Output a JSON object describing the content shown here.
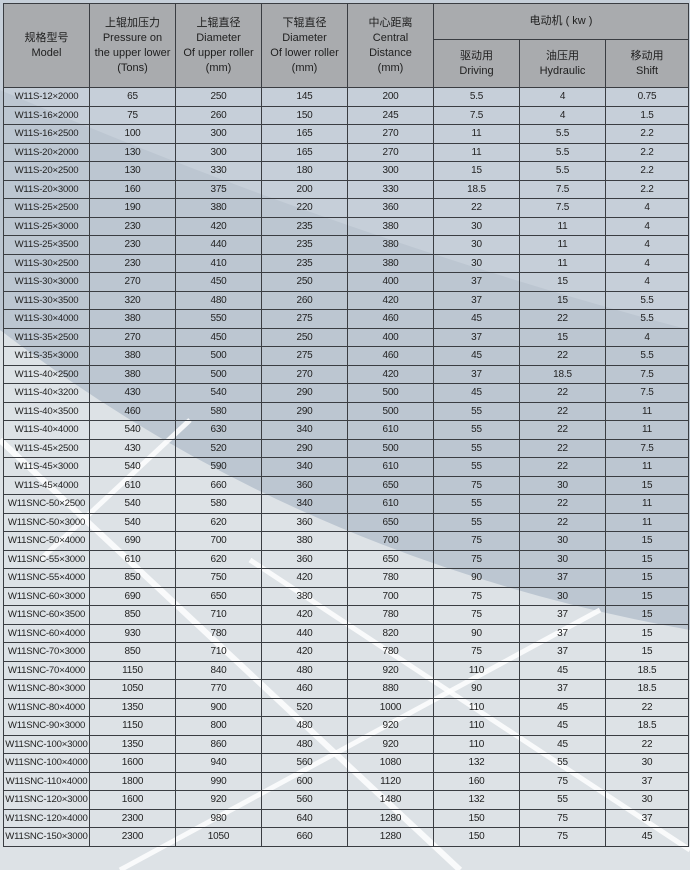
{
  "header": {
    "model": {
      "cn": "规格型号",
      "en": "Model"
    },
    "pressure": {
      "cn": "上辊加压力",
      "en1": "Pressure on",
      "en2": "the upper lower",
      "unit": "(Tons)"
    },
    "upper": {
      "cn": "上辊直径",
      "en1": "Diameter",
      "en2": "Of upper roller",
      "unit": "(mm)"
    },
    "lower": {
      "cn": "下辊直径",
      "en1": "Diameter",
      "en2": "Of lower roller",
      "unit": "(mm)"
    },
    "center": {
      "cn": "中心距离",
      "en1": "Central",
      "en2": "Distance",
      "unit": "(mm)"
    },
    "motor": "电动机 ( kw )",
    "driving": {
      "cn": "驱动用",
      "en": "Driving"
    },
    "hydraulic": {
      "cn": "油压用",
      "en": "Hydraulic"
    },
    "shift": {
      "cn": "移动用",
      "en": "Shift"
    }
  },
  "rows": [
    [
      "W11S-12×2000",
      "65",
      "250",
      "145",
      "200",
      "5.5",
      "4",
      "0.75"
    ],
    [
      "W11S-16×2000",
      "75",
      "260",
      "150",
      "245",
      "7.5",
      "4",
      "1.5"
    ],
    [
      "W11S-16×2500",
      "100",
      "300",
      "165",
      "270",
      "11",
      "5.5",
      "2.2"
    ],
    [
      "W11S-20×2000",
      "130",
      "300",
      "165",
      "270",
      "11",
      "5.5",
      "2.2"
    ],
    [
      "W11S-20×2500",
      "130",
      "330",
      "180",
      "300",
      "15",
      "5.5",
      "2.2"
    ],
    [
      "W11S-20×3000",
      "160",
      "375",
      "200",
      "330",
      "18.5",
      "7.5",
      "2.2"
    ],
    [
      "W11S-25×2500",
      "190",
      "380",
      "220",
      "360",
      "22",
      "7.5",
      "4"
    ],
    [
      "W11S-25×3000",
      "230",
      "420",
      "235",
      "380",
      "30",
      "11",
      "4"
    ],
    [
      "W11S-25×3500",
      "230",
      "440",
      "235",
      "380",
      "30",
      "11",
      "4"
    ],
    [
      "W11S-30×2500",
      "230",
      "410",
      "235",
      "380",
      "30",
      "11",
      "4"
    ],
    [
      "W11S-30×3000",
      "270",
      "450",
      "250",
      "400",
      "37",
      "15",
      "4"
    ],
    [
      "W11S-30×3500",
      "320",
      "480",
      "260",
      "420",
      "37",
      "15",
      "5.5"
    ],
    [
      "W11S-30×4000",
      "380",
      "550",
      "275",
      "460",
      "45",
      "22",
      "5.5"
    ],
    [
      "W11S-35×2500",
      "270",
      "450",
      "250",
      "400",
      "37",
      "15",
      "4"
    ],
    [
      "W11S-35×3000",
      "380",
      "500",
      "275",
      "460",
      "45",
      "22",
      "5.5"
    ],
    [
      "W11S-40×2500",
      "380",
      "500",
      "270",
      "420",
      "37",
      "18.5",
      "7.5"
    ],
    [
      "W11S-40×3200",
      "430",
      "540",
      "290",
      "500",
      "45",
      "22",
      "7.5"
    ],
    [
      "W11S-40×3500",
      "460",
      "580",
      "290",
      "500",
      "55",
      "22",
      "11"
    ],
    [
      "W11S-40×4000",
      "540",
      "630",
      "340",
      "610",
      "55",
      "22",
      "11"
    ],
    [
      "W11S-45×2500",
      "430",
      "520",
      "290",
      "500",
      "55",
      "22",
      "7.5"
    ],
    [
      "W11S-45×3000",
      "540",
      "590",
      "340",
      "610",
      "55",
      "22",
      "11"
    ],
    [
      "W11S-45×4000",
      "610",
      "660",
      "360",
      "650",
      "75",
      "30",
      "15"
    ],
    [
      "W11SNC-50×2500",
      "540",
      "580",
      "340",
      "610",
      "55",
      "22",
      "11"
    ],
    [
      "W11SNC-50×3000",
      "540",
      "620",
      "360",
      "650",
      "55",
      "22",
      "11"
    ],
    [
      "W11SNC-50×4000",
      "690",
      "700",
      "380",
      "700",
      "75",
      "30",
      "15"
    ],
    [
      "W11SNC-55×3000",
      "610",
      "620",
      "360",
      "650",
      "75",
      "30",
      "15"
    ],
    [
      "W11SNC-55×4000",
      "850",
      "750",
      "420",
      "780",
      "90",
      "37",
      "15"
    ],
    [
      "W11SNC-60×3000",
      "690",
      "650",
      "380",
      "700",
      "75",
      "30",
      "15"
    ],
    [
      "W11SNC-60×3500",
      "850",
      "710",
      "420",
      "780",
      "75",
      "37",
      "15"
    ],
    [
      "W11SNC-60×4000",
      "930",
      "780",
      "440",
      "820",
      "90",
      "37",
      "15"
    ],
    [
      "W11SNC-70×3000",
      "850",
      "710",
      "420",
      "780",
      "75",
      "37",
      "15"
    ],
    [
      "W11SNC-70×4000",
      "1150",
      "840",
      "480",
      "920",
      "110",
      "45",
      "18.5"
    ],
    [
      "W11SNC-80×3000",
      "1050",
      "770",
      "460",
      "880",
      "90",
      "37",
      "18.5"
    ],
    [
      "W11SNC-80×4000",
      "1350",
      "900",
      "520",
      "1000",
      "110",
      "45",
      "22"
    ],
    [
      "W11SNC-90×3000",
      "1150",
      "800",
      "480",
      "920",
      "110",
      "45",
      "18.5"
    ],
    [
      "W11SNC-100×3000",
      "1350",
      "860",
      "480",
      "920",
      "110",
      "45",
      "22"
    ],
    [
      "W11SNC-100×4000",
      "1600",
      "940",
      "560",
      "1080",
      "132",
      "55",
      "30"
    ],
    [
      "W11SNC-110×4000",
      "1800",
      "990",
      "600",
      "1120",
      "160",
      "75",
      "37"
    ],
    [
      "W11SNC-120×3000",
      "1600",
      "920",
      "560",
      "1480",
      "132",
      "55",
      "30"
    ],
    [
      "W11SNC-120×4000",
      "2300",
      "980",
      "640",
      "1280",
      "150",
      "75",
      "37"
    ],
    [
      "W11SNC-150×3000",
      "2300",
      "1050",
      "660",
      "1280",
      "150",
      "75",
      "45"
    ]
  ]
}
